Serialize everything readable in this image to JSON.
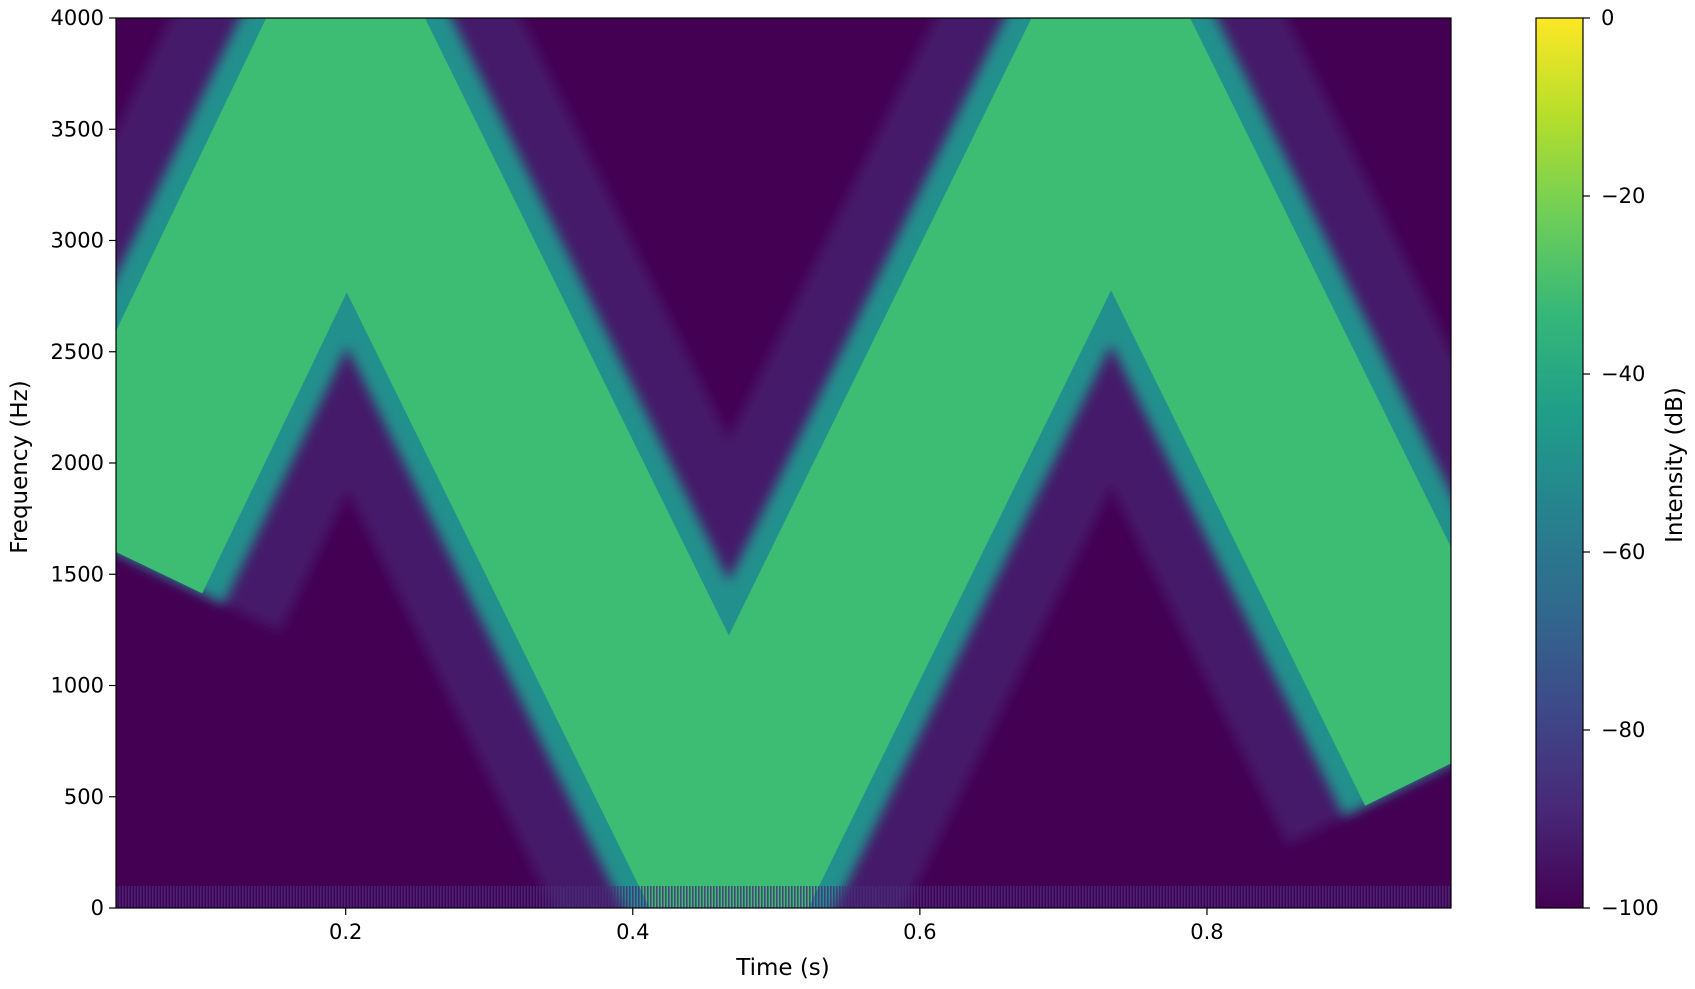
{
  "chart_data": {
    "type": "heatmap",
    "subtype": "spectrogram",
    "title": "",
    "xlabel": "Time (s)",
    "ylabel": "Frequency (Hz)",
    "xlim": [
      0.04,
      0.97
    ],
    "ylim": [
      0,
      4000
    ],
    "x_ticks": [
      0.2,
      0.4,
      0.6,
      0.8
    ],
    "x_tick_labels": [
      "0.2",
      "0.4",
      "0.6",
      "0.8"
    ],
    "y_ticks": [
      0,
      500,
      1000,
      1500,
      2000,
      2500,
      3000,
      3500,
      4000
    ],
    "y_tick_labels": [
      "0",
      "500",
      "1000",
      "1500",
      "2000",
      "2500",
      "3000",
      "3500",
      "4000"
    ],
    "grid": false,
    "colormap": "viridis",
    "colorbar": {
      "label": "Intensity (dB)",
      "range": [
        -100,
        0
      ],
      "ticks": [
        0,
        -20,
        -40,
        -60,
        -80,
        -100
      ],
      "tick_labels": [
        "0",
        "−20",
        "−40",
        "−60",
        "−80",
        "−100"
      ]
    },
    "background_db": -100,
    "band_db": -33,
    "series": [
      {
        "note": "triangular frequency sweep (band centre)",
        "x": [
          0.04,
          0.2,
          0.467,
          0.733,
          0.97
        ],
        "y": [
          1600,
          3750,
          250,
          3750,
          650
        ]
      }
    ],
    "band_half_width_hz": 430
  },
  "colors": {
    "background": "#440154",
    "band": "#3dbc74",
    "band_edge": "#21908d",
    "colormap_stops": [
      "#440154",
      "#482878",
      "#3e4989",
      "#31688e",
      "#26828e",
      "#1f9e89",
      "#35b779",
      "#6ece58",
      "#b5de2b",
      "#fde725"
    ]
  }
}
